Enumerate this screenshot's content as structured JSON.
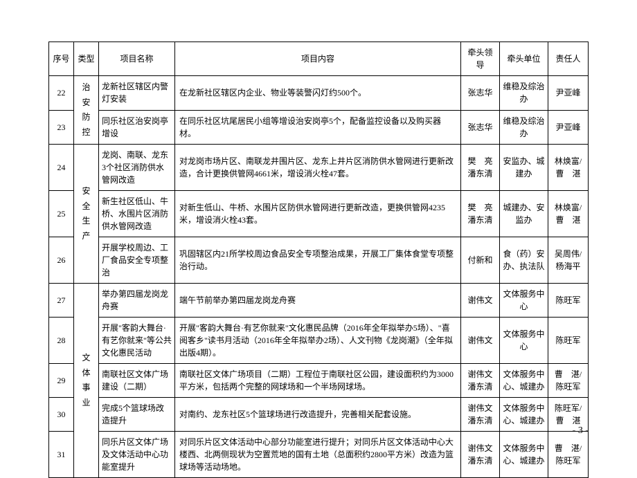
{
  "headers": {
    "seq": "序号",
    "type": "类型",
    "name": "项目名称",
    "content": "项目内容",
    "leader": "牵头领导",
    "unit": "牵头单位",
    "person": "责任人"
  },
  "groups": [
    {
      "type_label": "治安防控",
      "rows": [
        {
          "seq": "22",
          "name": "龙新社区辖区内警灯安装",
          "content": "在龙新社区辖区内企业、物业等装警闪灯约500个。",
          "leader": "张志华",
          "unit": "维稳及综治办",
          "person": "尹亚峰"
        },
        {
          "seq": "23",
          "name": "同乐社区治安岗亭增设",
          "content": "在同乐社区坑尾居民小组等增设治安岗亭5个，配备监控设备以及购买器材。",
          "leader": "张志华",
          "unit": "维稳及综治办",
          "person": "尹亚峰"
        }
      ]
    },
    {
      "type_label": "安全生产",
      "rows": [
        {
          "seq": "24",
          "name": "龙岗、南联、龙东3个社区消防供水管网改造",
          "content": "对龙岗市场片区、南联龙井围片区、龙东上井片区消防供水管网进行更新改造，合计更换供管网4661米，增设消火栓47套。",
          "leader": "樊　亮\n潘东清",
          "unit": "安监办、城建办",
          "person": "林焕富/曹　湛"
        },
        {
          "seq": "25",
          "name": "新生社区低山、牛桥、水围片区消防供水管网改造",
          "content": "对新生低山、牛桥、水围片区防供水管网进行更新改造，更换供管网4235米，增设消火栓43套。",
          "leader": "樊　亮\n潘东清",
          "unit": "城建办、安监办",
          "person": "林焕富/曹　湛"
        },
        {
          "seq": "26",
          "name": "开展学校周边、工厂食品安全专项整治",
          "content": "巩固辖区内21所学校周边食品安全专项整治成果，开展工厂集体食堂专项整治行动。",
          "leader": "付新和",
          "unit": "食（药）安办、执法队",
          "person": "吴周伟/杨海平"
        }
      ]
    },
    {
      "type_label": "文体事业",
      "rows": [
        {
          "seq": "27",
          "name": "举办第四届龙岗龙舟赛",
          "content": "端午节前举办第四届龙岗龙舟赛",
          "leader": "谢伟文",
          "unit": "文体服务中心",
          "person": "陈旺军"
        },
        {
          "seq": "28",
          "name": "开展\"客韵大舞台·有艺你就来\"等公共文化惠民活动",
          "content": "开展\"客韵大舞台·有艺你就来\"文化惠民品牌（2016年全年拟举办5场）、\"喜阅客乡\"读书月活动（2016年全年拟举办2场）、人文刊物《龙岗潮》（全年拟出版4期）。",
          "leader": "谢伟文",
          "unit": "文体服务中心",
          "person": "陈旺军"
        },
        {
          "seq": "29",
          "name": "南联社区文体广场建设（二期）",
          "content": "南联社区文体广场项目（二期）工程位于南联社区公园，建设面积约为3000平方米，包括两个完整的网球场和一个半场网球场。",
          "leader": "谢伟文\n潘东清",
          "unit": "文体服务中心、城建办",
          "person": "曹　湛/陈旺军"
        },
        {
          "seq": "30",
          "name": "完成5个篮球场改造提升",
          "content": "对南约、龙东社区5个篮球场进行改造提升，完善相关配套设施。",
          "leader": "谢伟文\n潘东清",
          "unit": "文体服务中心、城建办",
          "person": "陈旺军/曹　湛"
        },
        {
          "seq": "31",
          "name": "同乐片区文体广场及文体活动中心功能室提升",
          "content": "对同乐片区文体活动中心部分功能室进行提升；对同乐片区文体活动中心大楼西、北两侧现状为空置荒地的国有土地（总面积约2800平方米）改造为篮球场等活动场地。",
          "leader": "谢伟文\n潘东清",
          "unit": "文体服务中心、城建办",
          "person": "曹　湛/陈旺军"
        }
      ]
    }
  ],
  "page_number": "- 3 -"
}
